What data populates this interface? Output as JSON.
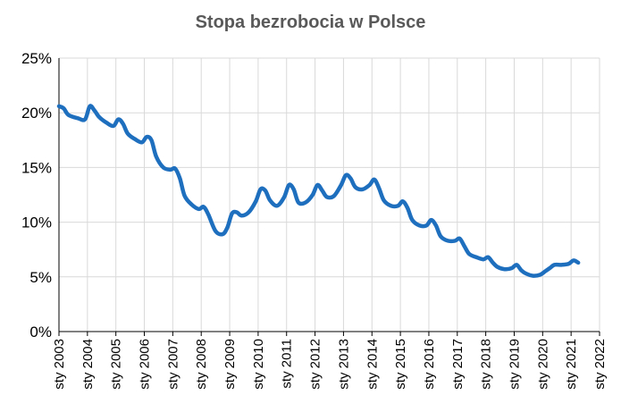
{
  "chart_data": {
    "type": "line",
    "title": "Stopa bezrobocia w Polsce",
    "xlabel": "",
    "ylabel": "",
    "ylim": [
      0,
      25
    ],
    "yticks": [
      "0%",
      "5%",
      "10%",
      "15%",
      "20%",
      "25%"
    ],
    "ytick_values": [
      0,
      5,
      10,
      15,
      20,
      25
    ],
    "xlim": [
      "2003-01",
      "2022-01"
    ],
    "xticks": [
      "sty 2003",
      "sty 2004",
      "sty 2005",
      "sty 2006",
      "sty 2007",
      "sty 2008",
      "sty 2009",
      "sty 2010",
      "sty 2011",
      "sty 2012",
      "sty 2013",
      "sty 2014",
      "sty 2015",
      "sty 2016",
      "sty 2017",
      "sty 2018",
      "sty 2019",
      "sty 2020",
      "sty 2021",
      "sty 2022"
    ],
    "xtick_values": [
      "2003-01",
      "2004-01",
      "2005-01",
      "2006-01",
      "2007-01",
      "2008-01",
      "2009-01",
      "2010-01",
      "2011-01",
      "2012-01",
      "2013-01",
      "2014-01",
      "2015-01",
      "2016-01",
      "2017-01",
      "2018-01",
      "2019-01",
      "2020-01",
      "2021-01",
      "2022-01"
    ],
    "grid": true,
    "legend": "none",
    "colors": {
      "line": "#1f6fbf",
      "grid": "#d9d9d9",
      "axis": "#000000",
      "title": "#595959"
    },
    "series": [
      {
        "x": [
          "2003-01",
          "2003-03",
          "2003-05",
          "2003-09",
          "2003-12",
          "2004-02",
          "2004-04",
          "2004-06",
          "2004-09",
          "2004-12",
          "2005-02",
          "2005-04",
          "2005-06",
          "2005-09",
          "2005-12",
          "2006-02",
          "2006-04",
          "2006-06",
          "2006-09",
          "2006-12",
          "2007-02",
          "2007-04",
          "2007-06",
          "2007-09",
          "2007-12",
          "2008-02",
          "2008-04",
          "2008-07",
          "2008-10",
          "2008-12",
          "2009-02",
          "2009-04",
          "2009-06",
          "2009-09",
          "2009-12",
          "2010-02",
          "2010-04",
          "2010-06",
          "2010-09",
          "2010-12",
          "2011-02",
          "2011-04",
          "2011-06",
          "2011-09",
          "2011-12",
          "2012-02",
          "2012-04",
          "2012-06",
          "2012-09",
          "2012-12",
          "2013-02",
          "2013-04",
          "2013-06",
          "2013-09",
          "2013-12",
          "2014-02",
          "2014-04",
          "2014-06",
          "2014-09",
          "2014-12",
          "2015-02",
          "2015-04",
          "2015-06",
          "2015-09",
          "2015-12",
          "2016-02",
          "2016-04",
          "2016-06",
          "2016-09",
          "2016-12",
          "2017-02",
          "2017-04",
          "2017-06",
          "2017-09",
          "2017-12",
          "2018-02",
          "2018-04",
          "2018-06",
          "2018-09",
          "2018-12",
          "2019-02",
          "2019-04",
          "2019-06",
          "2019-09",
          "2019-12",
          "2020-02",
          "2020-04",
          "2020-06",
          "2020-09",
          "2020-12",
          "2021-02",
          "2021-04"
        ],
        "y": [
          20.6,
          20.4,
          19.8,
          19.5,
          19.4,
          20.6,
          20.2,
          19.6,
          19.1,
          18.8,
          19.4,
          19.0,
          18.1,
          17.6,
          17.3,
          17.8,
          17.5,
          16.0,
          15.0,
          14.8,
          14.9,
          14.0,
          12.4,
          11.6,
          11.2,
          11.4,
          10.7,
          9.2,
          8.9,
          9.5,
          10.8,
          10.9,
          10.6,
          10.9,
          11.9,
          13.0,
          12.9,
          12.0,
          11.5,
          12.3,
          13.4,
          13.0,
          11.8,
          11.8,
          12.5,
          13.4,
          12.9,
          12.3,
          12.4,
          13.4,
          14.3,
          14.0,
          13.2,
          13.0,
          13.4,
          13.9,
          13.1,
          12.0,
          11.5,
          11.5,
          11.9,
          11.3,
          10.2,
          9.7,
          9.7,
          10.2,
          9.7,
          8.7,
          8.3,
          8.3,
          8.5,
          7.8,
          7.1,
          6.8,
          6.6,
          6.8,
          6.3,
          5.9,
          5.7,
          5.8,
          6.1,
          5.6,
          5.3,
          5.1,
          5.2,
          5.5,
          5.8,
          6.1,
          6.1,
          6.2,
          6.5,
          6.3
        ]
      }
    ]
  }
}
